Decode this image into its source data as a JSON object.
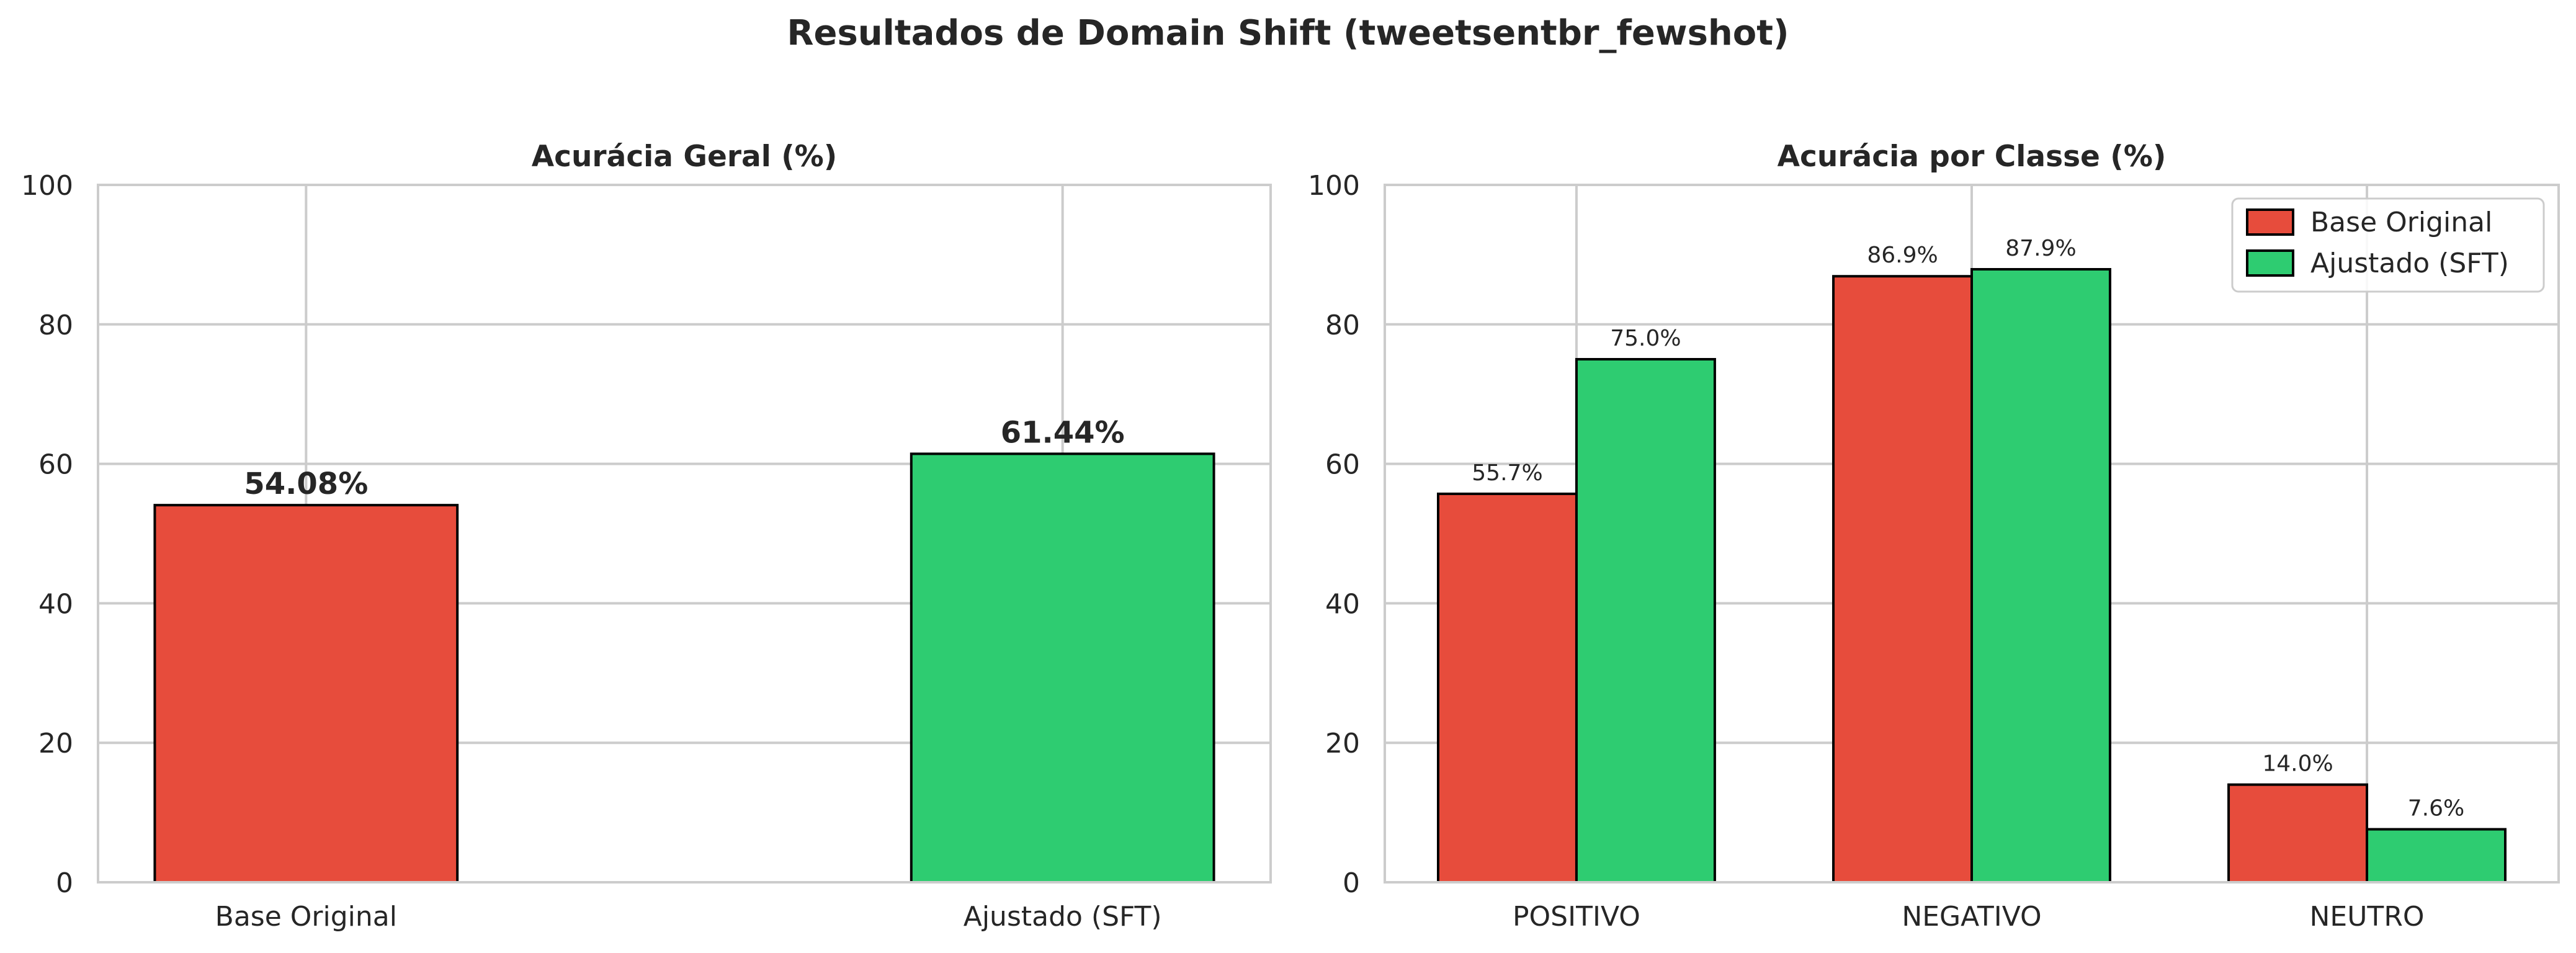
{
  "suptitle": "Resultados de Domain Shift (tweetsentbr_fewshot)",
  "colors": {
    "base": "#e74c3c",
    "sft": "#2ecc71",
    "grid": "#cccccc",
    "edge": "#000000"
  },
  "chart_data": [
    {
      "type": "bar",
      "title": "Acurácia Geral (%)",
      "categories": [
        "Base Original",
        "Ajustado (SFT)"
      ],
      "values": [
        54.08,
        61.44
      ],
      "value_labels": [
        "54.08%",
        "61.44%"
      ],
      "ylim": [
        0,
        100
      ],
      "yticks": [
        0,
        20,
        40,
        60,
        80,
        100
      ],
      "grid": true
    },
    {
      "type": "bar",
      "title": "Acurácia por Classe (%)",
      "categories": [
        "POSITIVO",
        "NEGATIVO",
        "NEUTRO"
      ],
      "series": [
        {
          "name": "Base Original",
          "values": [
            55.7,
            86.9,
            14.0
          ],
          "value_labels": [
            "55.7%",
            "86.9%",
            "14.0%"
          ]
        },
        {
          "name": "Ajustado (SFT)",
          "values": [
            75.0,
            87.9,
            7.6
          ],
          "value_labels": [
            "75.0%",
            "87.9%",
            "7.6%"
          ]
        }
      ],
      "ylim": [
        0,
        100
      ],
      "yticks": [
        0,
        20,
        40,
        60,
        80,
        100
      ],
      "grid": true,
      "legend": "top-right"
    }
  ]
}
